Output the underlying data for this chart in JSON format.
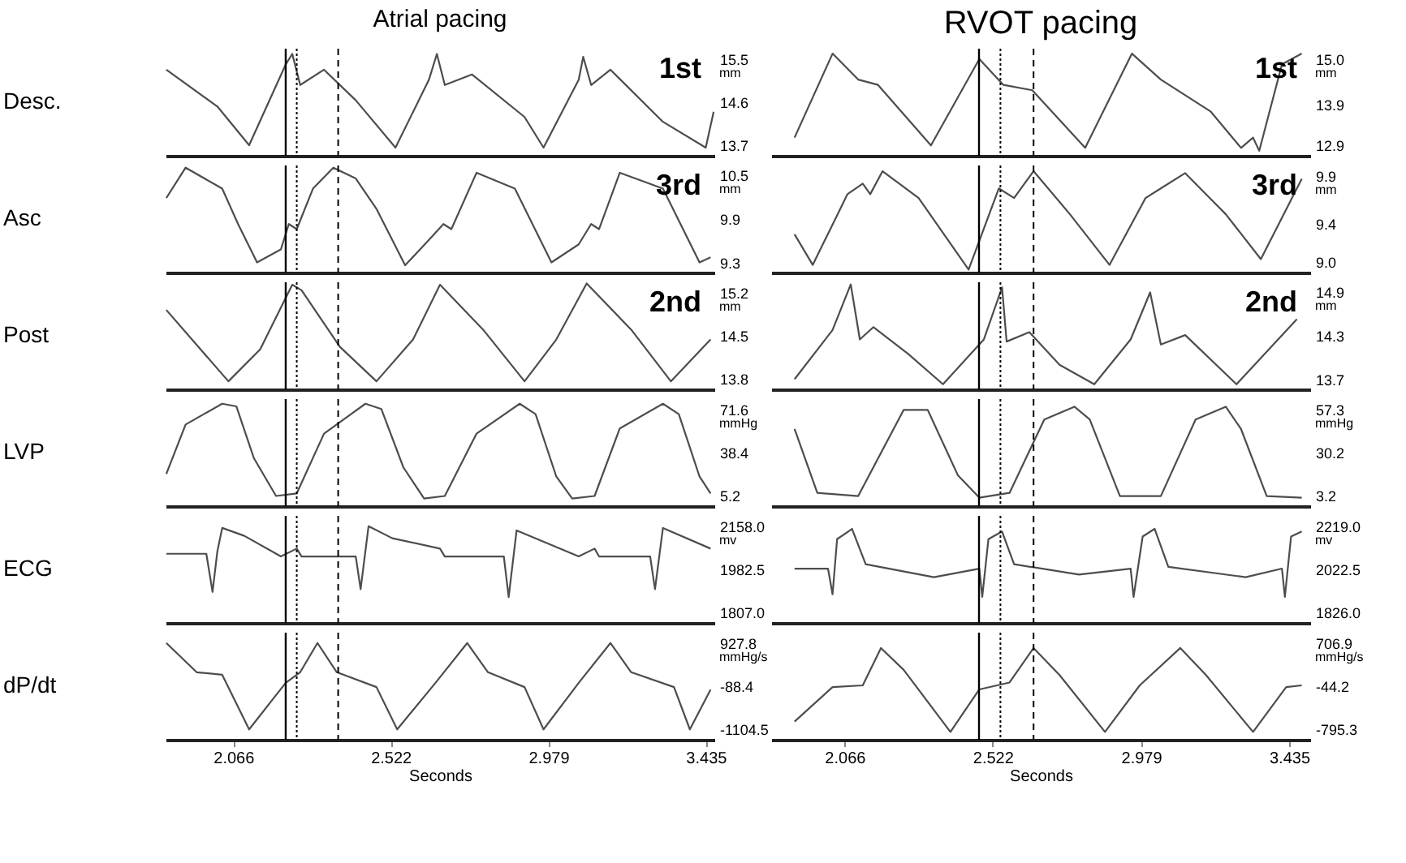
{
  "chart_data": [
    {
      "type": "line",
      "title": "Atrial pacing",
      "ylabel": "Desc.",
      "annotations": [
        "mm",
        "1st"
      ],
      "xlim": [
        1.87,
        3.46
      ],
      "xticks": [
        2.066,
        2.522,
        2.979,
        3.435
      ],
      "ylim": [
        13.48,
        15.72
      ],
      "yticks": [
        13.7,
        14.6,
        15.5
      ],
      "tick_labels": "y",
      "ref_lines": [
        {
          "axis": "x",
          "value": 2.218,
          "line_style": "solid",
          "color": "#000000"
        },
        {
          "axis": "x",
          "value": 2.25,
          "line_style": "dotted",
          "color": "#000000"
        },
        {
          "axis": "x",
          "value": 2.37,
          "line_style": "dashed",
          "color": "#000000"
        }
      ],
      "x": [
        1.872,
        2.02,
        2.112,
        2.218,
        2.237,
        2.26,
        2.329,
        2.421,
        2.536,
        2.633,
        2.656,
        2.679,
        2.758,
        2.91,
        2.965,
        3.067,
        3.08,
        3.103,
        3.159,
        3.311,
        3.435,
        3.458
      ],
      "series": [
        {
          "color": "#4d4d4d",
          "values": [
            15.28,
            14.51,
            13.7,
            15.39,
            15.61,
            14.96,
            15.28,
            14.64,
            13.65,
            15.07,
            15.61,
            14.96,
            15.18,
            14.29,
            13.65,
            15.07,
            15.55,
            14.96,
            15.28,
            14.19,
            13.65,
            14.4
          ]
        }
      ]
    },
    {
      "type": "line",
      "title": "RVOT pacing",
      "annotations": [
        "mm",
        "1st"
      ],
      "xlim": [
        1.84,
        3.5
      ],
      "xticks": [
        2.066,
        2.522,
        2.979,
        3.435
      ],
      "ylim": [
        12.65,
        15.25
      ],
      "yticks": [
        12.9,
        13.9,
        {
          "value": 15,
          "label": "15.0"
        }
      ],
      "tick_labels": "y",
      "ref_lines": [
        {
          "axis": "x",
          "value": 2.48,
          "line_style": "solid",
          "color": "#000000"
        },
        {
          "axis": "x",
          "value": 2.546,
          "line_style": "dotted",
          "color": "#000000"
        },
        {
          "axis": "x",
          "value": 2.648,
          "line_style": "dashed",
          "color": "#000000"
        }
      ],
      "x": [
        1.912,
        2.029,
        2.108,
        2.169,
        2.332,
        2.481,
        2.555,
        2.644,
        2.807,
        2.951,
        3.04,
        3.194,
        3.287,
        3.324,
        3.343,
        3.413,
        3.474
      ],
      "series": [
        {
          "color": "#4d4d4d",
          "values": [
            13.09,
            15.13,
            14.5,
            14.37,
            12.9,
            15.0,
            14.37,
            14.24,
            12.84,
            15.13,
            14.5,
            13.72,
            12.84,
            13.09,
            12.77,
            14.87,
            15.13
          ]
        }
      ]
    },
    {
      "type": "line",
      "ylabel": "Asc",
      "annotations": [
        "mm",
        "3rd"
      ],
      "xlim": [
        1.87,
        3.46
      ],
      "xticks": [
        2.066,
        2.522,
        2.979,
        3.435
      ],
      "ylim": [
        9.16,
        10.64
      ],
      "yticks": [
        9.3,
        9.9,
        10.5
      ],
      "tick_labels": "y",
      "ref_lines": [
        {
          "axis": "x",
          "value": 2.218,
          "line_style": "solid",
          "color": "#000000"
        },
        {
          "axis": "x",
          "value": 2.25,
          "line_style": "dotted",
          "color": "#000000"
        },
        {
          "axis": "x",
          "value": 2.37,
          "line_style": "dashed",
          "color": "#000000"
        }
      ],
      "x": [
        1.872,
        1.928,
        2.034,
        2.08,
        2.135,
        2.204,
        2.227,
        2.25,
        2.297,
        2.356,
        2.421,
        2.481,
        2.564,
        2.633,
        2.675,
        2.698,
        2.771,
        2.882,
        2.988,
        3.067,
        3.103,
        3.126,
        3.186,
        3.311,
        3.417,
        3.449
      ],
      "series": [
        {
          "color": "#4d4d4d",
          "values": [
            10.19,
            10.61,
            10.32,
            9.83,
            9.3,
            9.48,
            9.83,
            9.76,
            10.32,
            10.61,
            10.46,
            10.04,
            9.26,
            9.61,
            9.83,
            9.76,
            10.54,
            10.32,
            9.3,
            9.55,
            9.83,
            9.76,
            10.54,
            10.32,
            9.3,
            9.37
          ]
        }
      ]
    },
    {
      "type": "line",
      "annotations": [
        "mm",
        "3rd"
      ],
      "xlim": [
        1.84,
        3.5
      ],
      "xticks": [
        2.066,
        2.522,
        2.979,
        3.435
      ],
      "ylim": [
        8.89,
        10.01
      ],
      "yticks": [
        {
          "value": 9,
          "label": "9.0"
        },
        9.4,
        9.9
      ],
      "tick_labels": "y",
      "ref_lines": [
        {
          "axis": "x",
          "value": 2.48,
          "line_style": "solid",
          "color": "#000000"
        },
        {
          "axis": "x",
          "value": 2.546,
          "line_style": "dotted",
          "color": "#000000"
        },
        {
          "axis": "x",
          "value": 2.648,
          "line_style": "dashed",
          "color": "#000000"
        }
      ],
      "x": [
        1.912,
        1.968,
        2.075,
        2.122,
        2.145,
        2.183,
        2.294,
        2.448,
        2.541,
        2.588,
        2.648,
        2.76,
        2.882,
        2.993,
        3.04,
        3.115,
        3.24,
        3.348,
        3.474
      ],
      "series": [
        {
          "color": "#4d4d4d",
          "values": [
            9.29,
            8.97,
            9.71,
            9.82,
            9.71,
            9.95,
            9.67,
            8.92,
            9.77,
            9.67,
            9.95,
            9.5,
            8.97,
            9.67,
            9.77,
            9.93,
            9.5,
            9.03,
            9.87
          ]
        }
      ]
    },
    {
      "type": "line",
      "ylabel": "Post",
      "annotations": [
        "mm",
        "2nd"
      ],
      "xlim": [
        1.87,
        3.46
      ],
      "xticks": [
        2.066,
        2.522,
        2.979,
        3.435
      ],
      "ylim": [
        13.63,
        15.37
      ],
      "yticks": [
        13.8,
        14.5,
        15.2
      ],
      "tick_labels": "y",
      "ref_lines": [
        {
          "axis": "x",
          "value": 2.218,
          "line_style": "solid",
          "color": "#000000"
        },
        {
          "axis": "x",
          "value": 2.25,
          "line_style": "dotted",
          "color": "#000000"
        },
        {
          "axis": "x",
          "value": 2.37,
          "line_style": "dashed",
          "color": "#000000"
        }
      ],
      "x": [
        1.872,
        2.052,
        2.144,
        2.237,
        2.264,
        2.375,
        2.481,
        2.587,
        2.665,
        2.79,
        2.91,
        3.002,
        3.09,
        3.219,
        3.334,
        3.449
      ],
      "series": [
        {
          "color": "#4d4d4d",
          "values": [
            14.92,
            13.76,
            14.28,
            15.33,
            15.24,
            14.32,
            13.76,
            14.44,
            15.33,
            14.6,
            13.76,
            14.44,
            15.35,
            14.6,
            13.76,
            14.44
          ]
        }
      ]
    },
    {
      "type": "line",
      "annotations": [
        "mm",
        "2nd"
      ],
      "xlim": [
        1.84,
        3.5
      ],
      "xticks": [
        2.066,
        2.522,
        2.979,
        3.435
      ],
      "ylim": [
        13.56,
        15.04
      ],
      "yticks": [
        13.7,
        14.3,
        14.9
      ],
      "tick_labels": "y",
      "ref_lines": [
        {
          "axis": "x",
          "value": 2.48,
          "line_style": "solid",
          "color": "#000000"
        },
        {
          "axis": "x",
          "value": 2.546,
          "line_style": "dotted",
          "color": "#000000"
        },
        {
          "axis": "x",
          "value": 2.648,
          "line_style": "dashed",
          "color": "#000000"
        }
      ],
      "x": [
        1.912,
        2.029,
        2.085,
        2.113,
        2.155,
        2.262,
        2.369,
        2.495,
        2.551,
        2.565,
        2.635,
        2.728,
        2.835,
        2.947,
        3.007,
        3.04,
        3.115,
        3.273,
        3.459
      ],
      "series": [
        {
          "color": "#4d4d4d",
          "values": [
            13.7,
            14.38,
            15.01,
            14.25,
            14.42,
            14.05,
            13.63,
            14.25,
            14.97,
            14.22,
            14.35,
            13.9,
            13.63,
            14.25,
            14.9,
            14.18,
            14.31,
            13.63,
            14.53
          ]
        }
      ]
    },
    {
      "type": "line",
      "ylabel": "LVP",
      "annotations": [
        "mmHg"
      ],
      "xlim": [
        1.87,
        3.46
      ],
      "xticks": [
        2.066,
        2.522,
        2.979,
        3.435
      ],
      "ylim": [
        -2.8,
        79.6
      ],
      "yticks": [
        5.2,
        38.4,
        71.6
      ],
      "tick_labels": "y",
      "ref_lines": [
        {
          "axis": "x",
          "value": 2.218,
          "line_style": "solid",
          "color": "#000000"
        },
        {
          "axis": "x",
          "value": 2.25,
          "line_style": "dotted",
          "color": "#000000"
        },
        {
          "axis": "x",
          "value": 2.37,
          "line_style": "dashed",
          "color": "#000000"
        }
      ],
      "x": [
        1.872,
        1.928,
        2.034,
        2.075,
        2.126,
        2.19,
        2.25,
        2.329,
        2.449,
        2.495,
        2.559,
        2.619,
        2.679,
        2.771,
        2.896,
        2.942,
        3.002,
        3.048,
        3.113,
        3.186,
        3.311,
        3.357,
        3.417,
        3.449
      ],
      "series": [
        {
          "color": "#4d4d4d",
          "values": [
            22,
            60,
            76,
            74,
            34,
            5,
            7,
            53,
            76,
            72,
            27,
            3,
            5,
            53,
            76,
            68,
            20,
            3,
            5,
            57,
            76,
            68,
            20,
            7
          ]
        }
      ]
    },
    {
      "type": "line",
      "annotations": [
        "mmHg"
      ],
      "xlim": [
        1.84,
        3.5
      ],
      "xticks": [
        2.066,
        2.522,
        2.979,
        3.435
      ],
      "ylim": [
        -3.3,
        63.8
      ],
      "yticks": [
        3.2,
        30.2,
        57.3
      ],
      "tick_labels": "y",
      "ref_lines": [
        {
          "axis": "x",
          "value": 2.48,
          "line_style": "solid",
          "color": "#000000"
        },
        {
          "axis": "x",
          "value": 2.546,
          "line_style": "dotted",
          "color": "#000000"
        },
        {
          "axis": "x",
          "value": 2.648,
          "line_style": "dashed",
          "color": "#000000"
        }
      ],
      "x": [
        1.912,
        1.982,
        2.108,
        2.248,
        2.322,
        2.415,
        2.481,
        2.574,
        2.681,
        2.774,
        2.821,
        2.914,
        3.04,
        3.147,
        3.24,
        3.287,
        3.366,
        3.474
      ],
      "series": [
        {
          "color": "#4d4d4d",
          "values": [
            45,
            5,
            3,
            57,
            57,
            16,
            2,
            5,
            51,
            59,
            51,
            3,
            3,
            51,
            59,
            45,
            3,
            2
          ]
        }
      ]
    },
    {
      "type": "line",
      "ylabel": "ECG",
      "annotations": [
        "mv"
      ],
      "xlim": [
        1.87,
        3.46
      ],
      "xticks": [
        2.066,
        2.522,
        2.979,
        3.435
      ],
      "ylim": [
        1764.9,
        2200.1
      ],
      "yticks": [
        {
          "value": 1807,
          "label": "1807.0"
        },
        1982.5,
        {
          "value": 2158,
          "label": "2158.0"
        }
      ],
      "tick_labels": "y",
      "ref_lines": [
        {
          "axis": "x",
          "value": 2.218,
          "line_style": "solid",
          "color": "#000000"
        },
        {
          "axis": "x",
          "value": 2.25,
          "line_style": "dotted",
          "color": "#000000"
        },
        {
          "axis": "x",
          "value": 2.37,
          "line_style": "dashed",
          "color": "#000000"
        }
      ],
      "x": [
        1.872,
        1.988,
        2.006,
        2.02,
        2.034,
        2.098,
        2.204,
        2.25,
        2.264,
        2.421,
        2.435,
        2.458,
        2.527,
        2.665,
        2.679,
        2.85,
        2.864,
        2.887,
        3.067,
        3.113,
        3.126,
        3.274,
        3.288,
        3.311,
        3.449
      ],
      "series": [
        {
          "color": "#4d4d4d",
          "values": [
            2046,
            2046,
            1891,
            2056,
            2151,
            2119,
            2035,
            2067,
            2035,
            2035,
            1902,
            2158,
            2109,
            2067,
            2035,
            2035,
            1870,
            2141,
            2035,
            2067,
            2035,
            2035,
            1902,
            2151,
            2067
          ]
        }
      ]
    },
    {
      "type": "line",
      "annotations": [
        "mv"
      ],
      "xlim": [
        1.84,
        3.5
      ],
      "xticks": [
        2.066,
        2.522,
        2.979,
        3.435
      ],
      "ylim": [
        1778.8,
        2266.2
      ],
      "yticks": [
        {
          "value": 1826,
          "label": "1826.0"
        },
        2022.5,
        {
          "value": 2219,
          "label": "2219.0"
        }
      ],
      "tick_labels": "y",
      "ref_lines": [
        {
          "axis": "x",
          "value": 2.48,
          "line_style": "solid",
          "color": "#000000"
        },
        {
          "axis": "x",
          "value": 2.546,
          "line_style": "dotted",
          "color": "#000000"
        },
        {
          "axis": "x",
          "value": 2.648,
          "line_style": "dashed",
          "color": "#000000"
        }
      ],
      "x": [
        1.912,
        2.015,
        2.029,
        2.043,
        2.089,
        2.131,
        2.341,
        2.481,
        2.49,
        2.509,
        2.551,
        2.588,
        2.788,
        2.947,
        2.956,
        2.984,
        3.021,
        3.063,
        3.301,
        3.413,
        3.422,
        3.441,
        3.474
      ],
      "series": [
        {
          "color": "#4d4d4d",
          "values": [
            2026,
            2026,
            1909,
            2160,
            2207,
            2046,
            1987,
            2026,
            1897,
            2160,
            2195,
            2046,
            1999,
            2026,
            1897,
            2172,
            2207,
            2034,
            1987,
            2026,
            1897,
            2172,
            2195
          ]
        }
      ]
    },
    {
      "type": "line",
      "ylabel": "dP/dt",
      "xlabel": "Seconds",
      "annotations": [
        "mmHg/s"
      ],
      "xlim": [
        1.87,
        3.46
      ],
      "xticks": [
        2.066,
        2.522,
        2.979,
        3.435
      ],
      "ylim": [
        -1348.4,
        1171.7
      ],
      "yticks": [
        -1104.5,
        -88.4,
        927.8
      ],
      "ref_lines": [
        {
          "axis": "x",
          "value": 2.218,
          "line_style": "solid",
          "color": "#000000"
        },
        {
          "axis": "x",
          "value": 2.25,
          "line_style": "dotted",
          "color": "#000000"
        },
        {
          "axis": "x",
          "value": 2.37,
          "line_style": "dashed",
          "color": "#000000"
        }
      ],
      "x": [
        1.872,
        1.96,
        2.034,
        2.112,
        2.218,
        2.26,
        2.31,
        2.366,
        2.481,
        2.541,
        2.652,
        2.744,
        2.804,
        2.91,
        2.965,
        3.067,
        3.159,
        3.219,
        3.343,
        3.389,
        3.449
      ],
      "series": [
        {
          "color": "#4d4d4d",
          "values": [
            928,
            240,
            180,
            -1105,
            -10,
            240,
            928,
            240,
            -110,
            -1105,
            -10,
            928,
            240,
            -110,
            -1105,
            -10,
            928,
            240,
            -110,
            -1105,
            -170
          ]
        }
      ]
    },
    {
      "type": "line",
      "xlabel": "Seconds",
      "annotations": [
        "mmHg/s"
      ],
      "xlim": [
        1.84,
        3.5
      ],
      "xticks": [
        2.066,
        2.522,
        2.979,
        3.435
      ],
      "ylim": [
        -975.6,
        887.2
      ],
      "yticks": [
        -795.3,
        -44.2,
        706.9
      ],
      "ref_lines": [
        {
          "axis": "x",
          "value": 2.48,
          "line_style": "solid",
          "color": "#000000"
        },
        {
          "axis": "x",
          "value": 2.546,
          "line_style": "dotted",
          "color": "#000000"
        },
        {
          "axis": "x",
          "value": 2.648,
          "line_style": "dashed",
          "color": "#000000"
        }
      ],
      "x": [
        1.912,
        2.029,
        2.122,
        2.178,
        2.248,
        2.392,
        2.481,
        2.574,
        2.648,
        2.728,
        2.868,
        2.975,
        3.1,
        3.179,
        3.324,
        3.426,
        3.474
      ],
      "series": [
        {
          "color": "#4d4d4d",
          "values": [
            -660,
            -60,
            -30,
            620,
            240,
            -840,
            -100,
            20,
            620,
            150,
            -840,
            -30,
            620,
            150,
            -840,
            -60,
            -30
          ]
        }
      ]
    }
  ]
}
